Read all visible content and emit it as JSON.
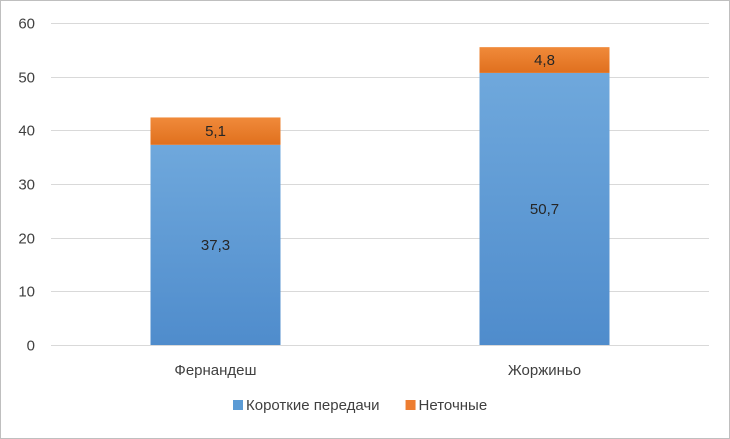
{
  "chart_data": {
    "type": "bar",
    "stacked": true,
    "title": "",
    "xlabel": "",
    "ylabel": "",
    "categories": [
      "Фернандеш",
      "Жоржиньо"
    ],
    "series": [
      {
        "name": "Короткие передачи",
        "values": [
          37.3,
          50.7
        ],
        "labels": [
          "37,3",
          "50,7"
        ],
        "color": "#5b9bd5"
      },
      {
        "name": "Неточные",
        "values": [
          5.1,
          4.8
        ],
        "labels": [
          "5,1",
          "4,8"
        ],
        "color": "#ed7d31"
      }
    ],
    "ylim": [
      0,
      60
    ],
    "yticks": [
      0,
      10,
      20,
      30,
      40,
      50,
      60
    ],
    "grid": true,
    "legend_position": "bottom"
  }
}
